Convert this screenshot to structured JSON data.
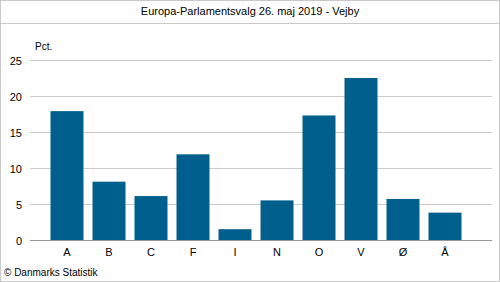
{
  "chart_data": {
    "type": "bar",
    "title": "Europa-Parlamentsvalg 26. maj 2019 - Vejby",
    "y_label": "Pct.",
    "source": "© Danmarks Statistik",
    "categories": [
      "A",
      "B",
      "C",
      "F",
      "I",
      "N",
      "O",
      "V",
      "Ø",
      "Å"
    ],
    "values": [
      17.9,
      8.1,
      6.1,
      11.9,
      1.5,
      5.5,
      17.3,
      22.5,
      5.7,
      3.8
    ],
    "color": "#005f8c",
    "ylim": [
      0,
      25
    ],
    "yticks": [
      0,
      5,
      10,
      15,
      20,
      25
    ],
    "grid": true
  }
}
